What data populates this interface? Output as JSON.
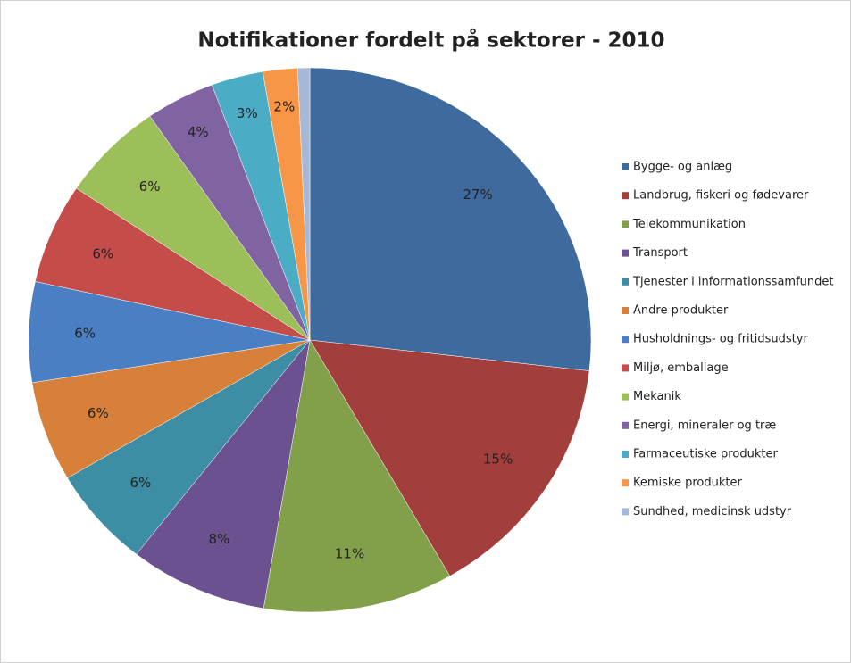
{
  "chart_data": {
    "type": "pie",
    "title": "Notifikationer fordelt på sektorer - 2010",
    "categories": [
      "Bygge- og anlæg",
      "Landbrug, fiskeri og fødevarer",
      "Telekommunikation",
      "Transport",
      "Tjenester i informationssamfundet",
      "Andre produkter",
      "Husholdnings- og fritidsudstyr",
      "Miljø, emballage",
      "Mekanik",
      "Energi, mineraler og træ",
      "Farmaceutiske produkter",
      "Kemiske produkter",
      "Sundhed, medicinsk udstyr"
    ],
    "values": [
      27,
      15,
      11,
      8,
      6,
      6,
      6,
      6,
      6,
      4,
      3,
      2,
      0.7
    ],
    "value_labels": [
      "27%",
      "15%",
      "11%",
      "8%",
      "6%",
      "6%",
      "6%",
      "6%",
      "6%",
      "4%",
      "3%",
      "2%",
      null
    ],
    "colors": [
      "#3f6a9e",
      "#a23f3c",
      "#82a04a",
      "#6c5190",
      "#3d8ea4",
      "#d7803a",
      "#4a7fc4",
      "#c44d4a",
      "#9dbf5a",
      "#8064a2",
      "#4bacc6",
      "#f79646",
      "#a6b8d8"
    ],
    "legend": "right"
  }
}
